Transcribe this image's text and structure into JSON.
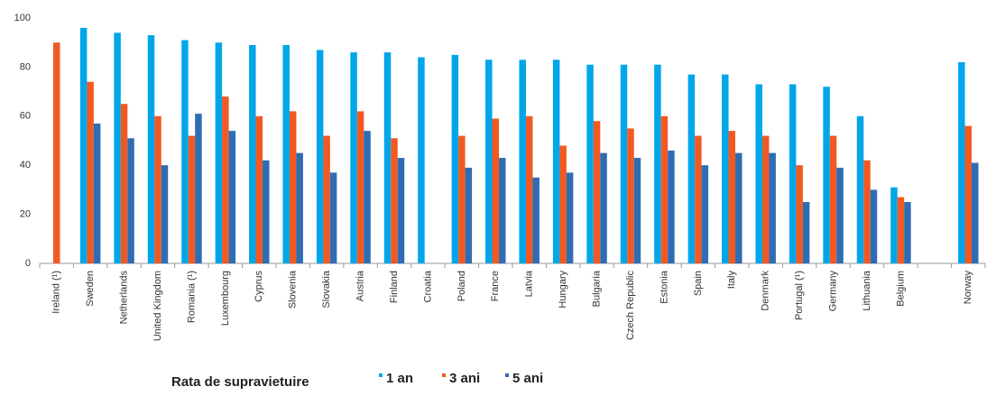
{
  "chart_data": {
    "type": "bar",
    "legend_title": "Rata de supravietuire",
    "categories": [
      "Ireland (¹)",
      "Sweden",
      "Netherlands",
      "United Kingdom",
      "Romania (¹)",
      "Luxembourg",
      "Cyprus",
      "Slovenia",
      "Slovakia",
      "Austria",
      "Finland",
      "Croatia",
      "Poland",
      "France",
      "Latvia",
      "Hungary",
      "Bulgaria",
      "Czech Republic",
      "Estonia",
      "Spain",
      "Italy",
      "Denmark",
      "Portugal (¹)",
      "Germany",
      "Lithuania",
      "Belgium",
      null,
      "Norway"
    ],
    "series": [
      {
        "name": "1 an",
        "color": "#00a6ea",
        "values": [
          null,
          96,
          94,
          93,
          91,
          90,
          89,
          89,
          87,
          86,
          86,
          84,
          85,
          83,
          83,
          83,
          81,
          81,
          81,
          77,
          77,
          73,
          73,
          72,
          60,
          31,
          null,
          82
        ]
      },
      {
        "name": "3 ani",
        "color": "#f05a22",
        "values": [
          90,
          74,
          65,
          60,
          52,
          68,
          60,
          62,
          52,
          62,
          51,
          null,
          52,
          59,
          60,
          48,
          58,
          55,
          60,
          52,
          54,
          52,
          40,
          52,
          42,
          27,
          null,
          56
        ]
      },
      {
        "name": "5 ani",
        "color": "#2e6db4",
        "values": [
          null,
          57,
          51,
          40,
          61,
          54,
          42,
          45,
          37,
          54,
          43,
          null,
          39,
          43,
          35,
          37,
          45,
          43,
          46,
          40,
          45,
          45,
          25,
          39,
          30,
          25,
          null,
          41
        ]
      }
    ],
    "ylim": [
      0,
      100
    ],
    "yticks": [
      0,
      20,
      40,
      60,
      80,
      100
    ],
    "grid": false
  }
}
